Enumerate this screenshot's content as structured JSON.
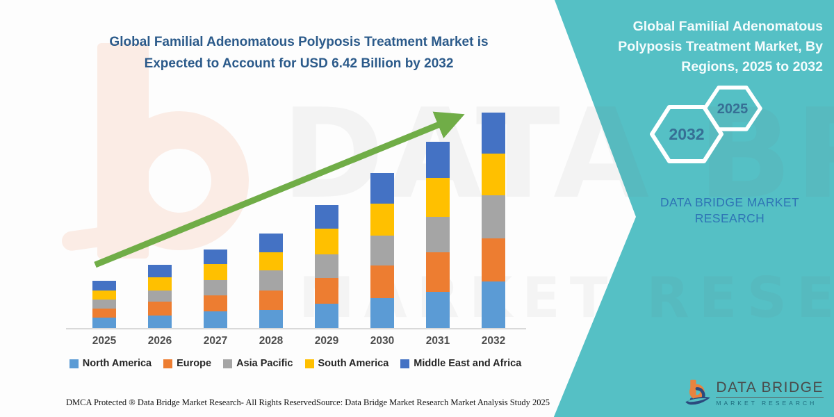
{
  "colors": {
    "teal_panel": "#55c0c5",
    "title_blue": "#2b5a8a",
    "arrow_green": "#70AD47",
    "brand_blue": "#2e74b5",
    "hex_label_blue": "#366f95"
  },
  "chart_title": "Global Familial Adenomatous Polyposis Treatment Market is\nExpected to Account for USD 6.42 Billion by 2032",
  "chart_data": {
    "type": "bar",
    "stacked": true,
    "unit": "USD Billion",
    "title": "Global Familial Adenomatous Polyposis Treatment Market is Expected to Account for USD 6.42 Billion by 2032",
    "categories": [
      "2025",
      "2026",
      "2027",
      "2028",
      "2029",
      "2030",
      "2031",
      "2032"
    ],
    "series": [
      {
        "name": "North America",
        "color": "#5B9BD5",
        "values": [
          0.31,
          0.37,
          0.49,
          0.54,
          0.72,
          0.89,
          1.08,
          1.39
        ]
      },
      {
        "name": "Europe",
        "color": "#ED7D31",
        "values": [
          0.27,
          0.41,
          0.48,
          0.58,
          0.77,
          0.97,
          1.18,
          1.28
        ]
      },
      {
        "name": "Asia Pacific",
        "color": "#A5A5A5",
        "values": [
          0.27,
          0.33,
          0.46,
          0.6,
          0.7,
          0.89,
          1.06,
          1.28
        ]
      },
      {
        "name": "South America",
        "color": "#FFC000",
        "values": [
          0.27,
          0.39,
          0.47,
          0.54,
          0.77,
          0.95,
          1.16,
          1.24
        ]
      },
      {
        "name": "Middle East and Africa",
        "color": "#4472C4",
        "values": [
          0.29,
          0.38,
          0.43,
          0.56,
          0.71,
          0.92,
          1.07,
          1.23
        ]
      }
    ],
    "totals": [
      1.41,
      1.88,
      2.33,
      2.82,
      3.67,
      4.62,
      5.55,
      6.42
    ],
    "ylim": [
      0,
      6.42
    ],
    "grid": false,
    "y_axis_visible": false,
    "legend_position": "bottom",
    "annotations": [
      "upward green trend arrow"
    ]
  },
  "right_panel": {
    "title": "Global Familial Adenomatous\nPolyposis Treatment Market, By\nRegions, 2025 to 2032",
    "hexagons": [
      {
        "label": "2032"
      },
      {
        "label": "2025"
      }
    ],
    "brand_text": "DATA BRIDGE MARKET\nRESEARCH"
  },
  "footer": {
    "dmca": "DMCA Protected ® Data Bridge Market Research-  All Rights Reserved.",
    "source": "Source: Data Bridge Market Research  Market Analysis Study 2025"
  },
  "logo": {
    "title": "DATA BRIDGE",
    "subtitle": "MARKET RESEARCH"
  },
  "watermark": {
    "line1": "DATA BRIDGE",
    "line2": "MARKET RESEARCH"
  }
}
